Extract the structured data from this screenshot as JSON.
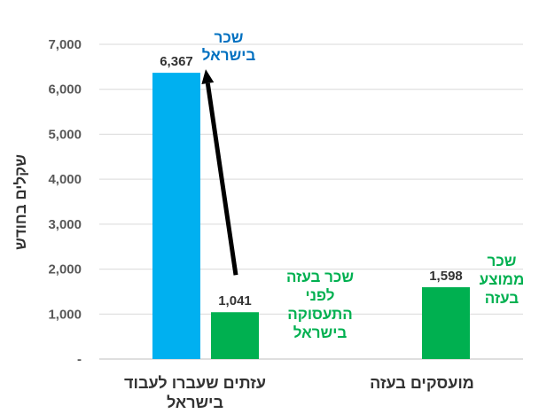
{
  "chart_data": {
    "type": "bar",
    "ylabel": "שקלים בחודש",
    "ylim": [
      0,
      7000
    ],
    "yticks": [
      0,
      1000,
      2000,
      3000,
      4000,
      5000,
      6000,
      7000
    ],
    "ytick_labels": [
      "-",
      "1,000",
      "2,000",
      "3,000",
      "4,000",
      "5,000",
      "6,000",
      "7,000"
    ],
    "grid": true,
    "groups": [
      {
        "category_lines": [
          "עזתים שעברו לעבוד",
          "בישראל"
        ],
        "bars": [
          {
            "name": "שכר בישראל",
            "value": 6367,
            "label": "6,367",
            "color": "#00B0F0"
          },
          {
            "name": "שכר בעזה לפני התעסוקה בישראל",
            "value": 1041,
            "label": "1,041",
            "color": "#00B050"
          }
        ]
      },
      {
        "category_lines": [
          "מועסקים בעזה"
        ],
        "bars": [
          {
            "name": "שכר ממוצע בעזה",
            "value": 1598,
            "label": "1,598",
            "color": "#00B050"
          }
        ]
      }
    ],
    "annotations": [
      {
        "lines": [
          "שכר",
          "בישראל"
        ],
        "color": "#0070C0"
      },
      {
        "lines": [
          "שכר בעזה",
          "לפני",
          "התעסוקה",
          "בישראל"
        ],
        "color": "#00B050"
      },
      {
        "lines": [
          "שכר",
          "ממוצע",
          "בעזה"
        ],
        "color": "#00B050"
      }
    ],
    "arrow": {
      "from_value": 1041,
      "to_value": 6367,
      "color": "#000000"
    }
  }
}
